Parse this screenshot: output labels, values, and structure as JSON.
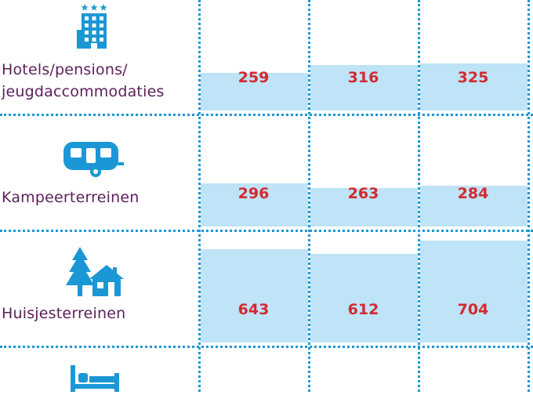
{
  "chart_data": {
    "type": "table",
    "rows": [
      {
        "label_lines": [
          "Hotels/pensions/",
          "jeugdaccommodaties"
        ],
        "icon": "hotel-icon",
        "values": [
          259,
          316,
          325
        ]
      },
      {
        "label_lines": [
          "Kampeerterreinen"
        ],
        "icon": "caravan-icon",
        "values": [
          296,
          263,
          284
        ]
      },
      {
        "label_lines": [
          "Huisjesterreinen"
        ],
        "icon": "bungalow-park-icon",
        "values": [
          643,
          612,
          704
        ]
      },
      {
        "label_lines": [],
        "icon": "bed-icon",
        "values": []
      }
    ],
    "bar_scale_max": 704
  },
  "colors": {
    "grid": "#1b97d6",
    "bar": "#bfe3f7",
    "value_text": "#d42a2f",
    "label_text": "#5a1f5a",
    "icon": "#1b97d6"
  }
}
